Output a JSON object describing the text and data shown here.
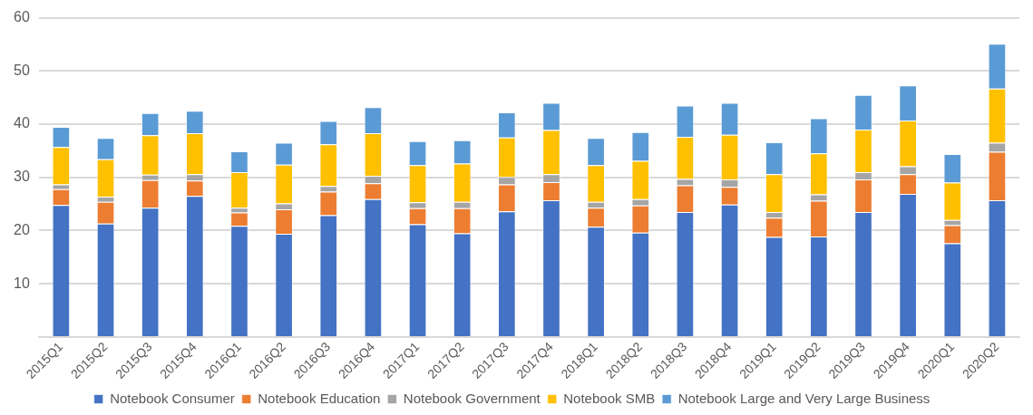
{
  "chart_data": {
    "type": "bar",
    "stacked": true,
    "grid": "y",
    "legend": "bottom",
    "categories": [
      "2015Q1",
      "2015Q2",
      "2015Q3",
      "2015Q4",
      "2016Q1",
      "2016Q2",
      "2016Q3",
      "2016Q4",
      "2017Q1",
      "2017Q2",
      "2017Q3",
      "2017Q4",
      "2018Q1",
      "2018Q2",
      "2018Q3",
      "2018Q4",
      "2019Q1",
      "2019Q2",
      "2019Q3",
      "2019Q4",
      "2020Q1",
      "2020Q2"
    ],
    "ylim": [
      0,
      60
    ],
    "yticks": [
      {
        "value": 0,
        "label": null
      },
      10,
      20,
      30,
      40,
      50,
      60
    ],
    "series": [
      {
        "name": "Notebook Consumer",
        "color": "#4472c4",
        "values": [
          24.8,
          21.3,
          24.3,
          26.5,
          20.9,
          19.4,
          22.9,
          25.9,
          21.2,
          19.5,
          23.6,
          25.7,
          20.7,
          19.6,
          23.5,
          24.9,
          18.8,
          18.9,
          23.5,
          26.9,
          17.6,
          25.7
        ]
      },
      {
        "name": "Notebook Education",
        "color": "#ed7d31",
        "values": [
          3.0,
          4.1,
          5.2,
          2.9,
          2.5,
          4.6,
          4.4,
          3.0,
          3.0,
          4.7,
          5.1,
          3.4,
          3.6,
          5.1,
          5.0,
          3.3,
          3.6,
          6.7,
          6.1,
          3.7,
          3.4,
          9.1
        ]
      },
      {
        "name": "Notebook Government",
        "color": "#a5a5a5",
        "values": [
          0.9,
          1.0,
          1.0,
          1.2,
          0.9,
          1.1,
          1.1,
          1.4,
          1.1,
          1.2,
          1.4,
          1.5,
          1.1,
          1.2,
          1.2,
          1.4,
          1.1,
          1.2,
          1.4,
          1.5,
          1.0,
          1.7
        ]
      },
      {
        "name": "Notebook SMB",
        "color": "#ffc000",
        "values": [
          7.0,
          7.0,
          7.4,
          7.7,
          6.7,
          7.3,
          7.8,
          8.0,
          7.0,
          7.2,
          7.4,
          8.3,
          6.9,
          7.2,
          7.9,
          8.4,
          7.1,
          7.7,
          8.0,
          8.6,
          7.0,
          10.2
        ]
      },
      {
        "name": "Notebook Large and Very Large Business",
        "color": "#5b9bd5",
        "values": [
          3.8,
          4.0,
          4.2,
          4.2,
          3.9,
          4.1,
          4.4,
          4.9,
          4.5,
          4.4,
          4.7,
          5.1,
          5.1,
          5.4,
          5.9,
          6.0,
          6.0,
          6.6,
          6.5,
          6.6,
          5.4,
          8.4
        ]
      }
    ]
  }
}
